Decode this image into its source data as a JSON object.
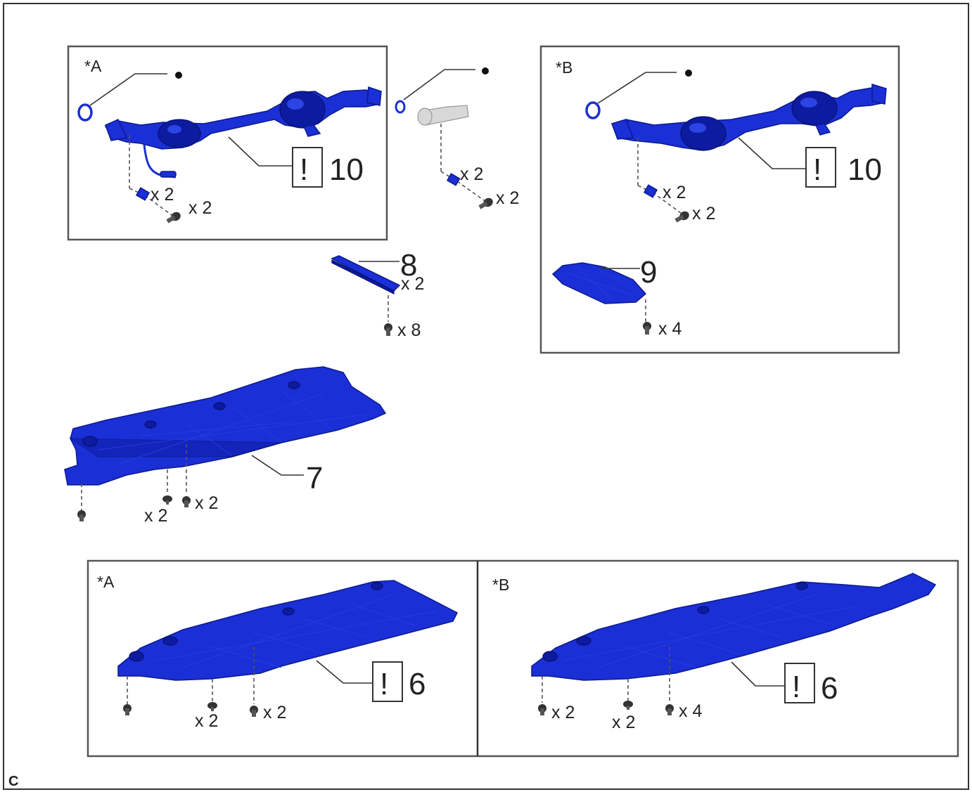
{
  "variants": {
    "a": "*A",
    "b": "*B"
  },
  "parts": {
    "exhaust_front_pipe": "10",
    "rear_no1_cover": "8",
    "rear_cover_b": "9",
    "center_cover": "7",
    "under_cover": "6"
  },
  "caution_mark": "!",
  "quantities": {
    "x2": "x 2",
    "x4": "x 4",
    "x8": "x 8"
  },
  "corner_label": "C",
  "colors": {
    "part": "#1a2fd6",
    "frame": "#555555"
  }
}
